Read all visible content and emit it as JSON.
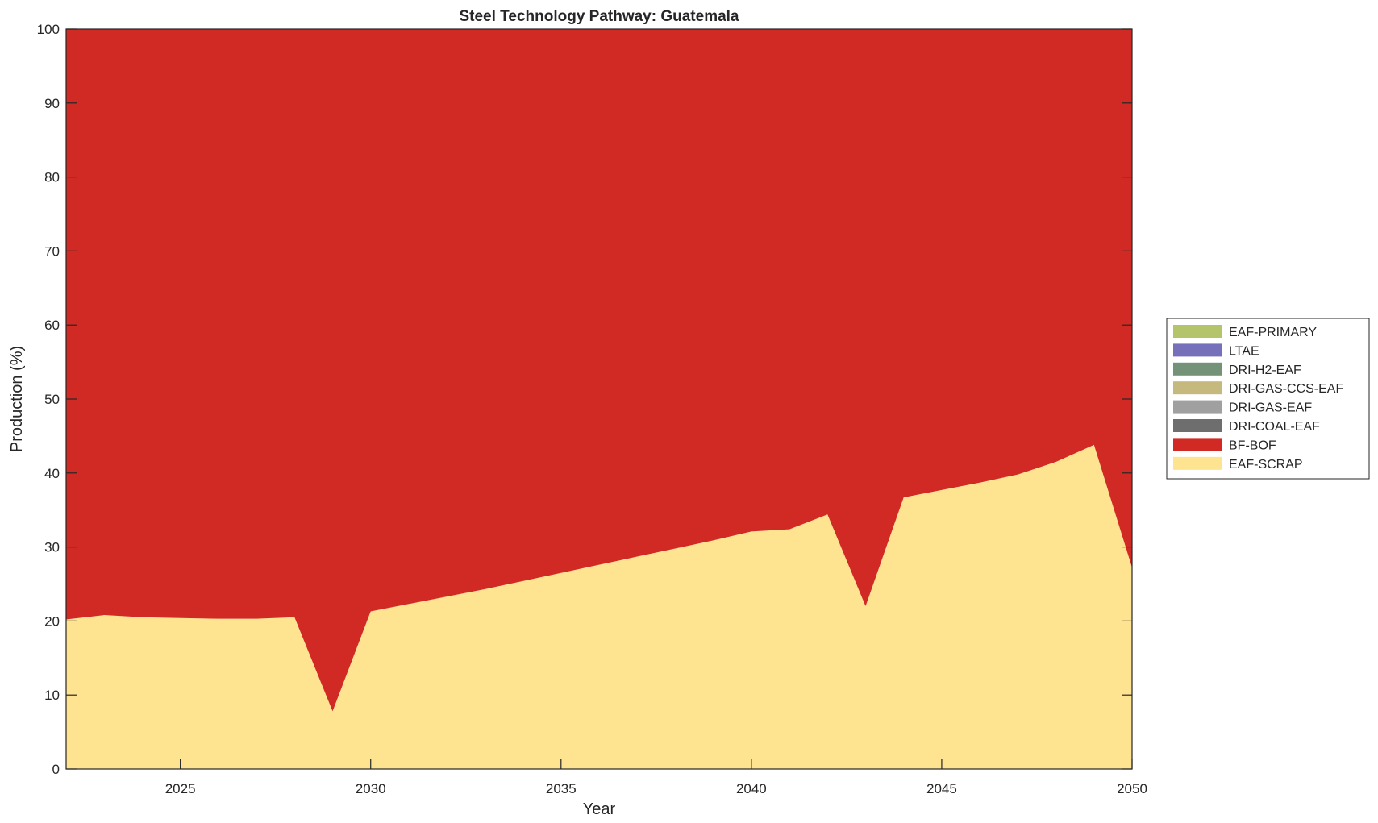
{
  "chart_data": {
    "type": "area",
    "stacked": true,
    "title": "Steel Technology Pathway: Guatemala",
    "xlabel": "Year",
    "ylabel": "Production (%)",
    "xlim": [
      2022,
      2050
    ],
    "ylim": [
      0,
      100
    ],
    "xticks": [
      2025,
      2030,
      2035,
      2040,
      2045,
      2050
    ],
    "yticks": [
      0,
      10,
      20,
      30,
      40,
      50,
      60,
      70,
      80,
      90,
      100
    ],
    "grid": false,
    "legend_position": "outside-right",
    "x": [
      2022,
      2023,
      2024,
      2025,
      2026,
      2027,
      2028,
      2029,
      2030,
      2031,
      2032,
      2033,
      2034,
      2035,
      2036,
      2037,
      2038,
      2039,
      2040,
      2041,
      2042,
      2043,
      2044,
      2045,
      2046,
      2047,
      2048,
      2049,
      2050
    ],
    "series": [
      {
        "name": "EAF-SCRAP",
        "color": "#fee391",
        "values": [
          20.2,
          20.8,
          20.5,
          20.4,
          20.3,
          20.3,
          20.5,
          7.8,
          21.3,
          22.3,
          23.3,
          24.3,
          25.4,
          26.5,
          27.6,
          28.7,
          29.8,
          30.9,
          32.1,
          32.4,
          34.4,
          22.0,
          36.7,
          37.7,
          38.7,
          39.8,
          41.5,
          43.8,
          27.2
        ]
      },
      {
        "name": "BF-BOF",
        "color": "#d12a24",
        "values": [
          79.8,
          79.2,
          79.5,
          79.6,
          79.7,
          79.7,
          79.5,
          92.2,
          78.7,
          77.7,
          76.7,
          75.7,
          74.6,
          73.5,
          72.4,
          71.3,
          70.2,
          69.1,
          67.9,
          67.6,
          65.6,
          78.0,
          63.3,
          62.3,
          61.3,
          60.2,
          58.5,
          56.2,
          72.8
        ]
      },
      {
        "name": "DRI-COAL-EAF",
        "color": "#6e6e6e",
        "values": [
          0,
          0,
          0,
          0,
          0,
          0,
          0,
          0,
          0,
          0,
          0,
          0,
          0,
          0,
          0,
          0,
          0,
          0,
          0,
          0,
          0,
          0,
          0,
          0,
          0,
          0,
          0,
          0,
          0
        ]
      },
      {
        "name": "DRI-GAS-EAF",
        "color": "#a0a0a0",
        "values": [
          0,
          0,
          0,
          0,
          0,
          0,
          0,
          0,
          0,
          0,
          0,
          0,
          0,
          0,
          0,
          0,
          0,
          0,
          0,
          0,
          0,
          0,
          0,
          0,
          0,
          0,
          0,
          0,
          0
        ]
      },
      {
        "name": "DRI-GAS-CCS-EAF",
        "color": "#c5b97e",
        "values": [
          0,
          0,
          0,
          0,
          0,
          0,
          0,
          0,
          0,
          0,
          0,
          0,
          0,
          0,
          0,
          0,
          0,
          0,
          0,
          0,
          0,
          0,
          0,
          0,
          0,
          0,
          0,
          0,
          0
        ]
      },
      {
        "name": "DRI-H2-EAF",
        "color": "#739278",
        "values": [
          0,
          0,
          0,
          0,
          0,
          0,
          0,
          0,
          0,
          0,
          0,
          0,
          0,
          0,
          0,
          0,
          0,
          0,
          0,
          0,
          0,
          0,
          0,
          0,
          0,
          0,
          0,
          0,
          0
        ]
      },
      {
        "name": "LTAE",
        "color": "#7570b9",
        "values": [
          0,
          0,
          0,
          0,
          0,
          0,
          0,
          0,
          0,
          0,
          0,
          0,
          0,
          0,
          0,
          0,
          0,
          0,
          0,
          0,
          0,
          0,
          0,
          0,
          0,
          0,
          0,
          0,
          0
        ]
      },
      {
        "name": "EAF-PRIMARY",
        "color": "#b4c46a",
        "values": [
          0,
          0,
          0,
          0,
          0,
          0,
          0,
          0,
          0,
          0,
          0,
          0,
          0,
          0,
          0,
          0,
          0,
          0,
          0,
          0,
          0,
          0,
          0,
          0,
          0,
          0,
          0,
          0,
          0
        ]
      }
    ],
    "legend_order": [
      "EAF-PRIMARY",
      "LTAE",
      "DRI-H2-EAF",
      "DRI-GAS-CCS-EAF",
      "DRI-GAS-EAF",
      "DRI-COAL-EAF",
      "BF-BOF",
      "EAF-SCRAP"
    ]
  }
}
